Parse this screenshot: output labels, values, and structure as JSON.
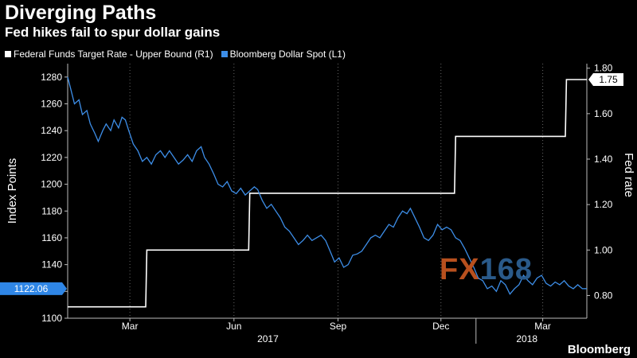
{
  "header": {
    "title": "Diverging Paths",
    "subtitle": "Fed hikes fail to spur dollar gains"
  },
  "brand": "Bloomberg",
  "watermark": {
    "part1": "FX",
    "part2": "168"
  },
  "chart_data": {
    "type": "line",
    "title": "Diverging Paths",
    "subtitle": "Fed hikes fail to spur dollar gains",
    "ylabel_left": "Index Points",
    "ylabel_right": "Fed rate",
    "ylim_left": [
      1100,
      1290
    ],
    "ylim_right": [
      0.7,
      1.82
    ],
    "yticks_left": [
      "1100",
      "1120",
      "1140",
      "1160",
      "1180",
      "1200",
      "1220",
      "1240",
      "1260",
      "1280"
    ],
    "yticks_right": [
      "0.80",
      "1.00",
      "1.20",
      "1.40",
      "1.60",
      "1.80"
    ],
    "xrange": [
      "2017-01-05",
      "2018-04-09"
    ],
    "xticks": [
      {
        "date": "2017-03-01",
        "label": "Mar"
      },
      {
        "date": "2017-06-01",
        "label": "Jun"
      },
      {
        "date": "2017-09-01",
        "label": "Sep"
      },
      {
        "date": "2017-12-01",
        "label": "Dec"
      },
      {
        "date": "2018-03-01",
        "label": "Mar"
      }
    ],
    "year_labels": [
      {
        "date": "2017-07-01",
        "label": "2017"
      },
      {
        "date": "2018-02-15",
        "label": "2018"
      }
    ],
    "year_separator": "2018-01-01",
    "grid": true,
    "legend_position": "top-left",
    "series": [
      {
        "name": "Federal Funds Target Rate - Upper Bound  (R1)",
        "axis": "right",
        "color": "#ffffff",
        "last_value_label": "1.75",
        "points": [
          [
            "2017-01-05",
            0.75
          ],
          [
            "2017-03-15",
            0.75
          ],
          [
            "2017-03-16",
            1.0
          ],
          [
            "2017-06-14",
            1.0
          ],
          [
            "2017-06-15",
            1.25
          ],
          [
            "2017-12-13",
            1.25
          ],
          [
            "2017-12-14",
            1.5
          ],
          [
            "2018-03-21",
            1.5
          ],
          [
            "2018-03-22",
            1.75
          ],
          [
            "2018-04-09",
            1.75
          ]
        ]
      },
      {
        "name": "Bloomberg Dollar Spot  (L1)",
        "axis": "left",
        "color": "#3d8ee8",
        "last_value_label": "1122.06",
        "points": [
          [
            "2017-01-05",
            1280
          ],
          [
            "2017-01-08",
            1270
          ],
          [
            "2017-01-11",
            1260
          ],
          [
            "2017-01-15",
            1263
          ],
          [
            "2017-01-18",
            1252
          ],
          [
            "2017-01-22",
            1255
          ],
          [
            "2017-01-25",
            1245
          ],
          [
            "2017-01-29",
            1238
          ],
          [
            "2017-02-01",
            1232
          ],
          [
            "2017-02-05",
            1240
          ],
          [
            "2017-02-08",
            1245
          ],
          [
            "2017-02-12",
            1240
          ],
          [
            "2017-02-15",
            1248
          ],
          [
            "2017-02-19",
            1242
          ],
          [
            "2017-02-22",
            1250
          ],
          [
            "2017-02-25",
            1248
          ],
          [
            "2017-02-28",
            1240
          ],
          [
            "2017-03-04",
            1230
          ],
          [
            "2017-03-08",
            1225
          ],
          [
            "2017-03-12",
            1217
          ],
          [
            "2017-03-16",
            1220
          ],
          [
            "2017-03-20",
            1215
          ],
          [
            "2017-03-24",
            1222
          ],
          [
            "2017-03-28",
            1225
          ],
          [
            "2017-04-01",
            1220
          ],
          [
            "2017-04-05",
            1225
          ],
          [
            "2017-04-09",
            1220
          ],
          [
            "2017-04-13",
            1215
          ],
          [
            "2017-04-17",
            1218
          ],
          [
            "2017-04-21",
            1222
          ],
          [
            "2017-04-25",
            1217
          ],
          [
            "2017-04-29",
            1225
          ],
          [
            "2017-05-03",
            1228
          ],
          [
            "2017-05-06",
            1220
          ],
          [
            "2017-05-10",
            1215
          ],
          [
            "2017-05-14",
            1208
          ],
          [
            "2017-05-18",
            1200
          ],
          [
            "2017-05-22",
            1198
          ],
          [
            "2017-05-26",
            1202
          ],
          [
            "2017-05-30",
            1195
          ],
          [
            "2017-06-03",
            1193
          ],
          [
            "2017-06-07",
            1197
          ],
          [
            "2017-06-11",
            1192
          ],
          [
            "2017-06-15",
            1195
          ],
          [
            "2017-06-19",
            1198
          ],
          [
            "2017-06-22",
            1196
          ],
          [
            "2017-06-26",
            1188
          ],
          [
            "2017-06-30",
            1182
          ],
          [
            "2017-07-04",
            1185
          ],
          [
            "2017-07-08",
            1180
          ],
          [
            "2017-07-12",
            1175
          ],
          [
            "2017-07-16",
            1168
          ],
          [
            "2017-07-20",
            1165
          ],
          [
            "2017-07-24",
            1160
          ],
          [
            "2017-07-28",
            1155
          ],
          [
            "2017-08-01",
            1158
          ],
          [
            "2017-08-05",
            1162
          ],
          [
            "2017-08-09",
            1158
          ],
          [
            "2017-08-13",
            1160
          ],
          [
            "2017-08-17",
            1162
          ],
          [
            "2017-08-21",
            1158
          ],
          [
            "2017-08-25",
            1150
          ],
          [
            "2017-08-29",
            1142
          ],
          [
            "2017-09-02",
            1145
          ],
          [
            "2017-09-06",
            1138
          ],
          [
            "2017-09-10",
            1140
          ],
          [
            "2017-09-14",
            1147
          ],
          [
            "2017-09-18",
            1148
          ],
          [
            "2017-09-22",
            1150
          ],
          [
            "2017-09-26",
            1155
          ],
          [
            "2017-09-30",
            1160
          ],
          [
            "2017-10-04",
            1162
          ],
          [
            "2017-10-08",
            1160
          ],
          [
            "2017-10-12",
            1165
          ],
          [
            "2017-10-16",
            1170
          ],
          [
            "2017-10-20",
            1168
          ],
          [
            "2017-10-24",
            1175
          ],
          [
            "2017-10-28",
            1180
          ],
          [
            "2017-11-01",
            1178
          ],
          [
            "2017-11-04",
            1182
          ],
          [
            "2017-11-08",
            1175
          ],
          [
            "2017-11-12",
            1168
          ],
          [
            "2017-11-16",
            1160
          ],
          [
            "2017-11-20",
            1158
          ],
          [
            "2017-11-24",
            1162
          ],
          [
            "2017-11-28",
            1170
          ],
          [
            "2017-12-02",
            1166
          ],
          [
            "2017-12-06",
            1168
          ],
          [
            "2017-12-10",
            1166
          ],
          [
            "2017-12-14",
            1160
          ],
          [
            "2017-12-18",
            1158
          ],
          [
            "2017-12-22",
            1152
          ],
          [
            "2017-12-26",
            1145
          ],
          [
            "2017-12-30",
            1138
          ],
          [
            "2018-01-03",
            1130
          ],
          [
            "2018-01-07",
            1128
          ],
          [
            "2018-01-11",
            1122
          ],
          [
            "2018-01-15",
            1124
          ],
          [
            "2018-01-19",
            1120
          ],
          [
            "2018-01-23",
            1128
          ],
          [
            "2018-01-27",
            1125
          ],
          [
            "2018-01-31",
            1118
          ],
          [
            "2018-02-04",
            1122
          ],
          [
            "2018-02-08",
            1125
          ],
          [
            "2018-02-12",
            1132
          ],
          [
            "2018-02-16",
            1128
          ],
          [
            "2018-02-20",
            1125
          ],
          [
            "2018-02-24",
            1130
          ],
          [
            "2018-02-28",
            1132
          ],
          [
            "2018-03-04",
            1126
          ],
          [
            "2018-03-08",
            1124
          ],
          [
            "2018-03-12",
            1127
          ],
          [
            "2018-03-16",
            1125
          ],
          [
            "2018-03-20",
            1128
          ],
          [
            "2018-03-24",
            1124
          ],
          [
            "2018-03-28",
            1122
          ],
          [
            "2018-04-01",
            1125
          ],
          [
            "2018-04-05",
            1122
          ],
          [
            "2018-04-09",
            1122.06
          ]
        ]
      }
    ]
  }
}
